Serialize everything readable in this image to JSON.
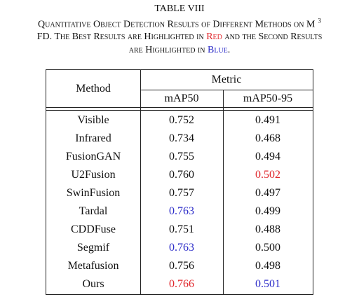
{
  "caption": {
    "label": "TABLE VIII",
    "lines": [
      [
        {
          "text": "Quantitative Object Detection Results of Different Methods on M"
        },
        {
          "text": "3",
          "superscript": true
        }
      ],
      [
        {
          "text": "FD. The Best Results are Highlighted in "
        },
        {
          "text": "Red",
          "color": "#e0262b"
        },
        {
          "text": " and the Second Results"
        }
      ],
      [
        {
          "text": "are Highlighted in "
        },
        {
          "text": "Blue",
          "color": "#2b2bc8"
        },
        {
          "text": "."
        }
      ]
    ]
  },
  "table": {
    "header": {
      "method": "Method",
      "metric": "Metric",
      "columns": [
        "mAP50",
        "mAP50-95"
      ]
    },
    "rows": [
      [
        "Visible",
        "0.752",
        "0.491"
      ],
      [
        "Infrared",
        "0.734",
        "0.468"
      ],
      [
        "FusionGAN",
        "0.755",
        "0.494"
      ],
      [
        "U2Fusion",
        "0.760",
        {
          "text": "0.502",
          "color": "#e0262b"
        }
      ],
      [
        "SwinFusion",
        "0.757",
        "0.497"
      ],
      [
        "Tardal",
        {
          "text": "0.763",
          "color": "#2b2bc8"
        },
        "0.499"
      ],
      [
        "CDDFuse",
        "0.751",
        "0.488"
      ],
      [
        "Segmif",
        {
          "text": "0.763",
          "color": "#2b2bc8"
        },
        "0.500"
      ],
      [
        "Metafusion",
        "0.756",
        "0.498"
      ],
      [
        "Ours",
        {
          "text": "0.766",
          "color": "#e0262b"
        },
        {
          "text": "0.501",
          "color": "#2b2bc8"
        }
      ]
    ]
  }
}
